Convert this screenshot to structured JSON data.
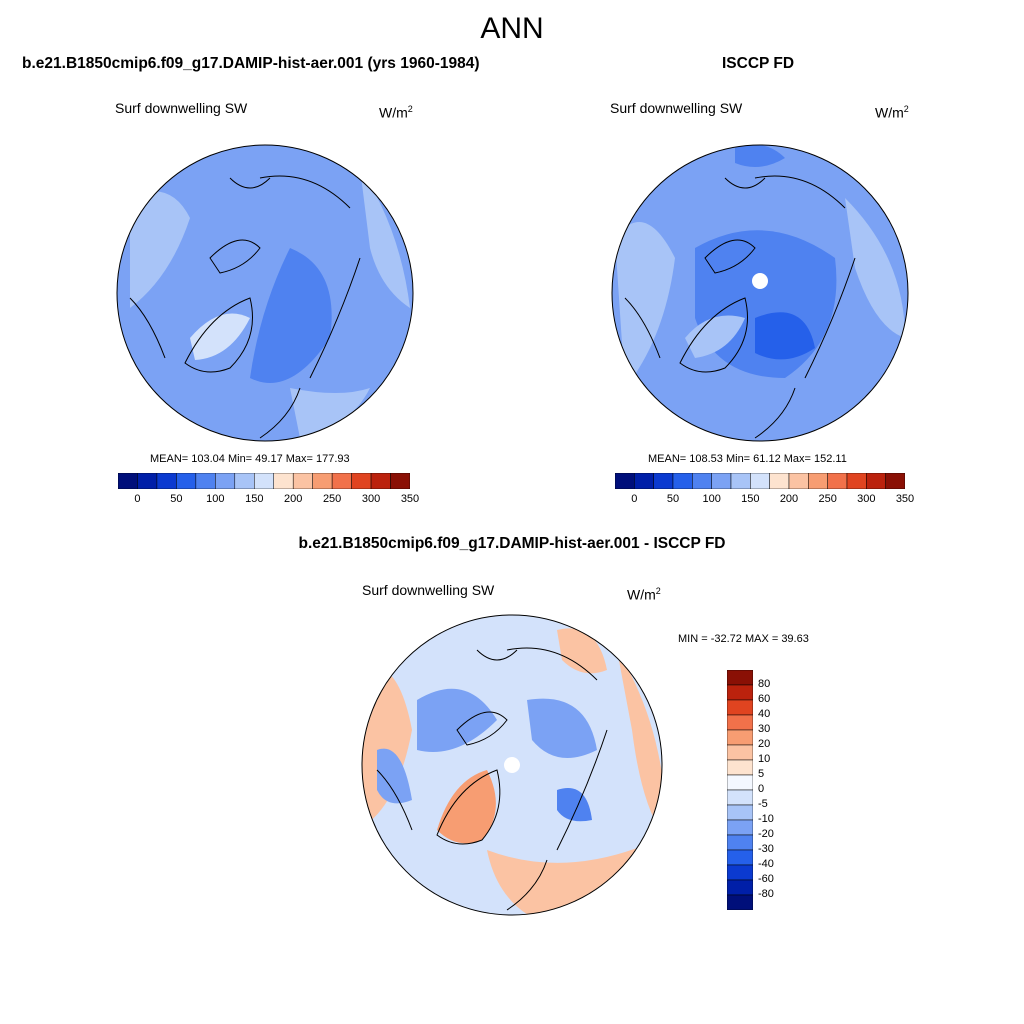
{
  "page": {
    "title": "ANN",
    "panel_top_left_title": "b.e21.B1850cmip6.f09_g17.DAMIP-hist-aer.001 (yrs 1960-1984)",
    "panel_top_right_title": "ISCCP FD",
    "panel_bottom_title": "b.e21.B1850cmip6.f09_g17.DAMIP-hist-aer.001 - ISCCP FD"
  },
  "colors": {
    "land_outline": "#000000",
    "abs_scale": [
      "#000f7a",
      "#001fa8",
      "#0b3ad0",
      "#2560ea",
      "#4f82f0",
      "#7ba2f4",
      "#a8c4f7",
      "#d3e2fb",
      "#fde3cf",
      "#fbc3a3",
      "#f79d72",
      "#f1714a",
      "#e04420",
      "#bb220d",
      "#8a1005"
    ],
    "diff_scale": [
      "#000f7a",
      "#001fa8",
      "#0b3ad0",
      "#2560ea",
      "#4f82f0",
      "#7ba2f4",
      "#a8c4f7",
      "#d3e2fb",
      "#f4f8ff",
      "#fde3cf",
      "#fbc3a3",
      "#f79d72",
      "#f1714a",
      "#e04420",
      "#bb220d",
      "#8a1005"
    ]
  },
  "chart_data": [
    {
      "type": "heatmap",
      "projection": "north-polar-stereographic",
      "title": "b.e21.B1850cmip6.f09_g17.DAMIP-hist-aer.001 (yrs 1960-1984)",
      "subtitle": "Surf downwelling SW",
      "units_base": "W/m",
      "units_exp": "2",
      "stats": "MEAN= 103.04  Min=  49.17  Max= 177.93",
      "colorbar": {
        "orientation": "horizontal",
        "labels": [
          "0",
          "50",
          "100",
          "150",
          "200",
          "250",
          "300",
          "350"
        ]
      }
    },
    {
      "type": "heatmap",
      "projection": "north-polar-stereographic",
      "title": "ISCCP FD",
      "subtitle": "Surf downwelling SW",
      "units_base": "W/m",
      "units_exp": "2",
      "stats": "MEAN= 108.53  Min=  61.12  Max= 152.11",
      "colorbar": {
        "orientation": "horizontal",
        "labels": [
          "0",
          "50",
          "100",
          "150",
          "200",
          "250",
          "300",
          "350"
        ]
      }
    },
    {
      "type": "heatmap",
      "projection": "north-polar-stereographic",
      "title": "b.e21.B1850cmip6.f09_g17.DAMIP-hist-aer.001 - ISCCP FD",
      "subtitle": "Surf downwelling SW",
      "units_base": "W/m",
      "units_exp": "2",
      "stats": "MIN = -32.72 MAX =  39.63",
      "colorbar": {
        "orientation": "vertical",
        "labels": [
          "80",
          "60",
          "40",
          "30",
          "20",
          "10",
          "5",
          "0",
          "-5",
          "-10",
          "-20",
          "-30",
          "-40",
          "-60",
          "-80"
        ]
      }
    }
  ]
}
